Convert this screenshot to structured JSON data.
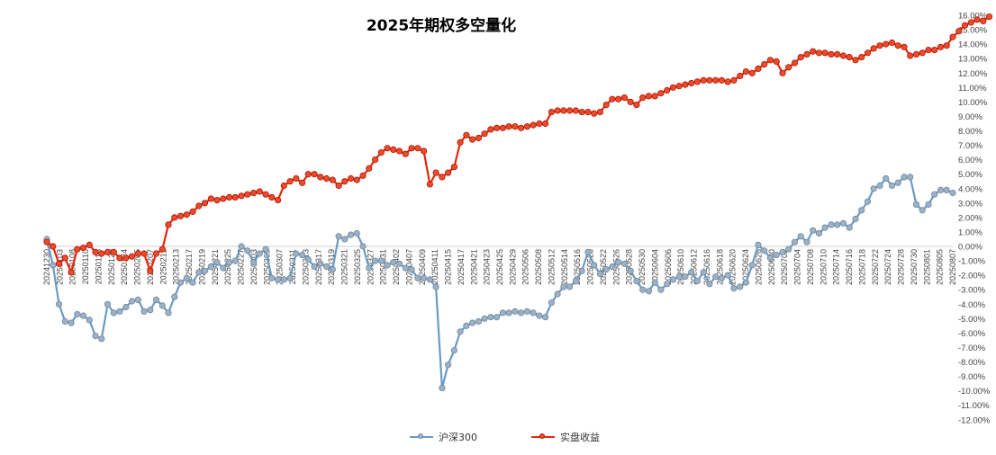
{
  "chart_data": {
    "type": "line",
    "title": "2025年期权多空量化",
    "ylim": [
      -12,
      16
    ],
    "y_ticks": [
      "-12.00%",
      "-11.00%",
      "-10.00%",
      "-9.00%",
      "-8.00%",
      "-7.00%",
      "-6.00%",
      "-5.00%",
      "-4.00%",
      "-3.00%",
      "-2.00%",
      "-1.00%",
      "0.00%",
      "1.00%",
      "2.00%",
      "3.00%",
      "4.00%",
      "5.00%",
      "6.00%",
      "7.00%",
      "8.00%",
      "9.00%",
      "10.00%",
      "11.00%",
      "12.00%",
      "13.00%",
      "14.00%",
      "15.00%",
      "16.00%"
    ],
    "x_tick_labels": [
      "20241230",
      "20250103",
      "20250108",
      "20250110",
      "20250115",
      "20250120",
      "20250124",
      "20250205",
      "20250207",
      "20250211",
      "20250213",
      "20250217",
      "20250219",
      "20250221",
      "20250225",
      "20250227",
      "20250303",
      "20250305",
      "20250307",
      "20250311",
      "20250313",
      "20250317",
      "20250319",
      "20250321",
      "20250325",
      "20250327",
      "20250331",
      "20250402",
      "20250407",
      "20250409",
      "20250411",
      "20250415",
      "20250417",
      "20250421",
      "20250423",
      "20250425",
      "20250429",
      "20250506",
      "20250508",
      "20250512",
      "20250514",
      "20250516",
      "20250520",
      "20250522",
      "20250526",
      "20250528",
      "20250530",
      "20250604",
      "20250606",
      "20250610",
      "20250612",
      "20250616",
      "20250618",
      "20250620",
      "20250624",
      "20250626",
      "20250630",
      "20250702",
      "20250704",
      "20250708",
      "20250710",
      "20250714",
      "20250716",
      "20250718",
      "20250722",
      "20250724",
      "20250728",
      "20250730",
      "20250801",
      "20250805",
      "20250807"
    ],
    "legend_position": "bottom",
    "series": [
      {
        "name": "沪深300",
        "color": "#6a9bc3",
        "values": [
          0.5,
          -1.3,
          -4.0,
          -5.2,
          -5.3,
          -4.7,
          -4.8,
          -5.1,
          -6.2,
          -6.4,
          -4.0,
          -4.6,
          -4.5,
          -4.2,
          -3.8,
          -3.7,
          -4.5,
          -4.4,
          -3.7,
          -4.1,
          -4.6,
          -3.5,
          -2.5,
          -2.2,
          -2.5,
          -1.8,
          -1.7,
          -1.4,
          -1.1,
          -1.5,
          -1.1,
          -1.0,
          0.0,
          -0.3,
          -1.1,
          -0.5,
          -0.2,
          -2.2,
          -2.3,
          -2.3,
          -2.2,
          -0.5,
          -0.6,
          -0.9,
          -1.4,
          -1.2,
          -1.4,
          -1.6,
          0.7,
          0.5,
          0.8,
          0.9,
          0.0,
          -1.5,
          -1.0,
          -1.0,
          -1.3,
          -1.1,
          -1.2,
          -1.5,
          -1.6,
          -2.2,
          -2.2,
          -2.3,
          -2.8,
          -9.8,
          -8.2,
          -7.2,
          -5.9,
          -5.5,
          -5.3,
          -5.2,
          -5.0,
          -4.9,
          -4.9,
          -4.6,
          -4.6,
          -4.5,
          -4.6,
          -4.5,
          -4.6,
          -4.8,
          -4.9,
          -3.9,
          -3.3,
          -2.8,
          -2.8,
          -2.4,
          -1.7,
          -0.4,
          -1.3,
          -1.9,
          -1.6,
          -1.4,
          -1.1,
          -1.2,
          -1.7,
          -2.4,
          -3.0,
          -3.1,
          -2.5,
          -3.0,
          -2.6,
          -2.3,
          -2.1,
          -2.1,
          -1.8,
          -2.4,
          -1.8,
          -2.6,
          -2.1,
          -2.2,
          -2.0,
          -2.9,
          -2.8,
          -2.5,
          -1.3,
          0.1,
          -0.3,
          -0.8,
          -0.6,
          -0.4,
          -0.2,
          0.3,
          0.7,
          0.3,
          1.1,
          0.9,
          1.3,
          1.5,
          1.5,
          1.6,
          1.3,
          1.9,
          2.5,
          3.1,
          4.0,
          4.2,
          4.7,
          4.2,
          4.4,
          4.8,
          4.8,
          2.9,
          2.5,
          2.9,
          3.6,
          3.9,
          3.9,
          3.7
        ]
      },
      {
        "name": "实盘收益",
        "color": "#e8260c",
        "values": [
          0.3,
          0.0,
          -1.2,
          -0.8,
          -1.8,
          -0.2,
          -0.1,
          0.1,
          -0.4,
          -0.5,
          -0.4,
          -0.4,
          -0.8,
          -0.8,
          -0.7,
          -0.5,
          -0.5,
          -1.7,
          -0.5,
          -0.2,
          1.5,
          2.0,
          2.1,
          2.2,
          2.4,
          2.8,
          3.0,
          3.3,
          3.2,
          3.3,
          3.4,
          3.4,
          3.5,
          3.6,
          3.7,
          3.8,
          3.6,
          3.4,
          3.2,
          4.2,
          4.5,
          4.7,
          4.4,
          5.0,
          5.0,
          4.8,
          4.7,
          4.6,
          4.2,
          4.5,
          4.7,
          4.6,
          4.9,
          5.4,
          6.0,
          6.5,
          6.8,
          6.7,
          6.6,
          6.4,
          6.8,
          6.8,
          6.6,
          4.3,
          5.1,
          4.8,
          5.1,
          5.5,
          7.2,
          7.7,
          7.4,
          7.5,
          7.8,
          8.1,
          8.2,
          8.2,
          8.3,
          8.3,
          8.2,
          8.3,
          8.4,
          8.5,
          8.5,
          9.3,
          9.4,
          9.4,
          9.4,
          9.4,
          9.3,
          9.3,
          9.2,
          9.3,
          9.8,
          10.2,
          10.2,
          10.3,
          10.0,
          9.8,
          10.3,
          10.4,
          10.4,
          10.6,
          10.8,
          11.0,
          11.1,
          11.2,
          11.3,
          11.4,
          11.5,
          11.5,
          11.5,
          11.5,
          11.4,
          11.5,
          11.8,
          12.1,
          12.0,
          12.3,
          12.6,
          12.9,
          12.8,
          12.0,
          12.4,
          12.7,
          13.1,
          13.3,
          13.5,
          13.4,
          13.4,
          13.3,
          13.3,
          13.2,
          13.1,
          12.9,
          13.1,
          13.4,
          13.7,
          13.9,
          14.0,
          14.1,
          13.9,
          13.8,
          13.2,
          13.3,
          13.4,
          13.6,
          13.6,
          13.8,
          13.9,
          14.5,
          14.9,
          15.3,
          15.5,
          15.7,
          15.6,
          15.9
        ]
      }
    ]
  }
}
